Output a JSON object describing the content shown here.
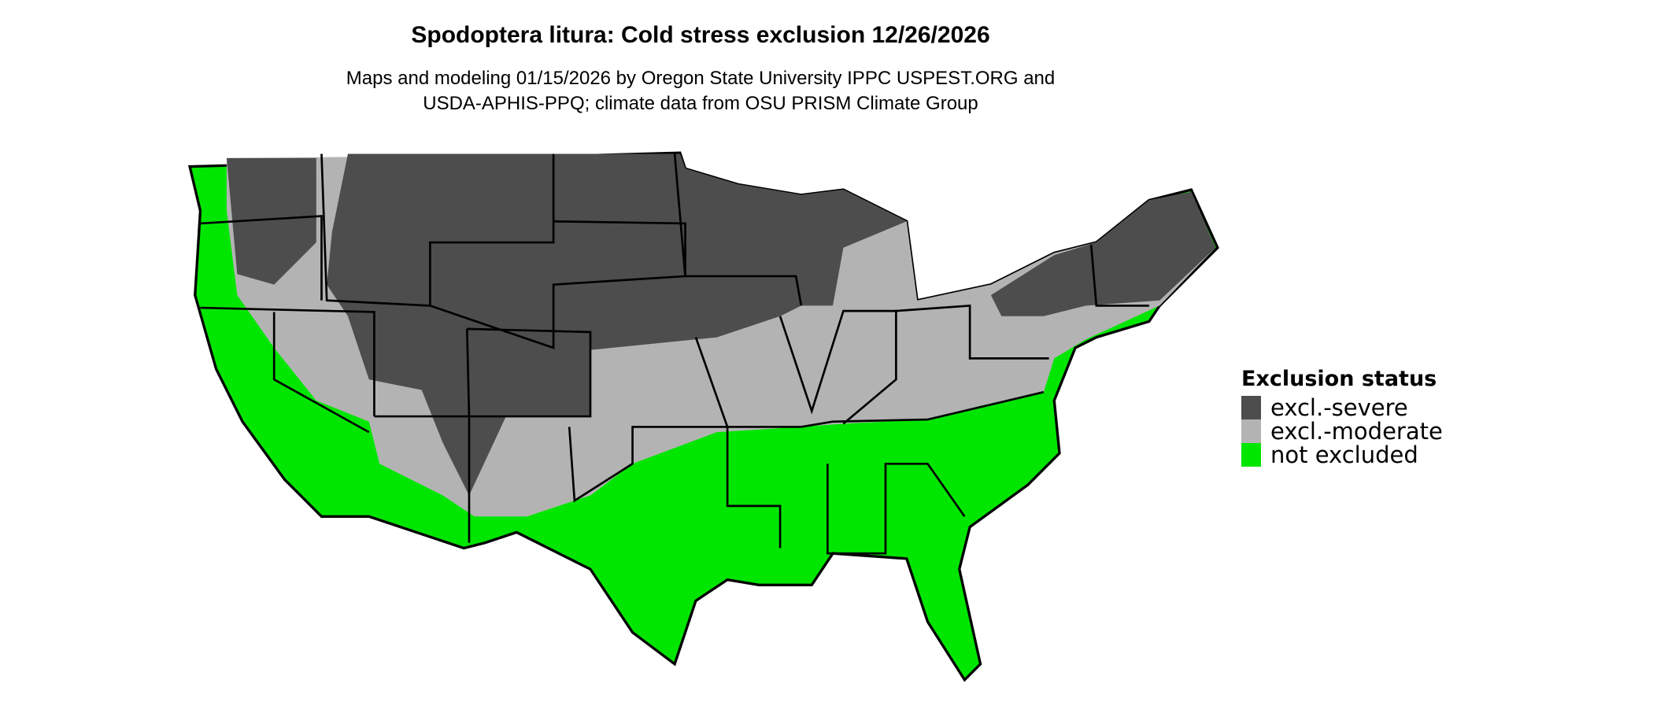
{
  "title": "Spodoptera litura: Cold stress exclusion 12/26/2026",
  "subtitle_line1": "Maps and modeling 01/15/2026 by Oregon State University IPPC USPEST.ORG and",
  "subtitle_line2": "USDA-APHIS-PPQ; climate data from OSU PRISM Climate Group",
  "legend": {
    "title": "Exclusion status",
    "items": [
      {
        "label": "excl.-severe",
        "color": "#4d4d4d"
      },
      {
        "label": "excl.-moderate",
        "color": "#b3b3b3"
      },
      {
        "label": "not excluded",
        "color": "#00e600"
      }
    ]
  },
  "map": {
    "region": "Contiguous United States",
    "border_color": "#000000"
  }
}
